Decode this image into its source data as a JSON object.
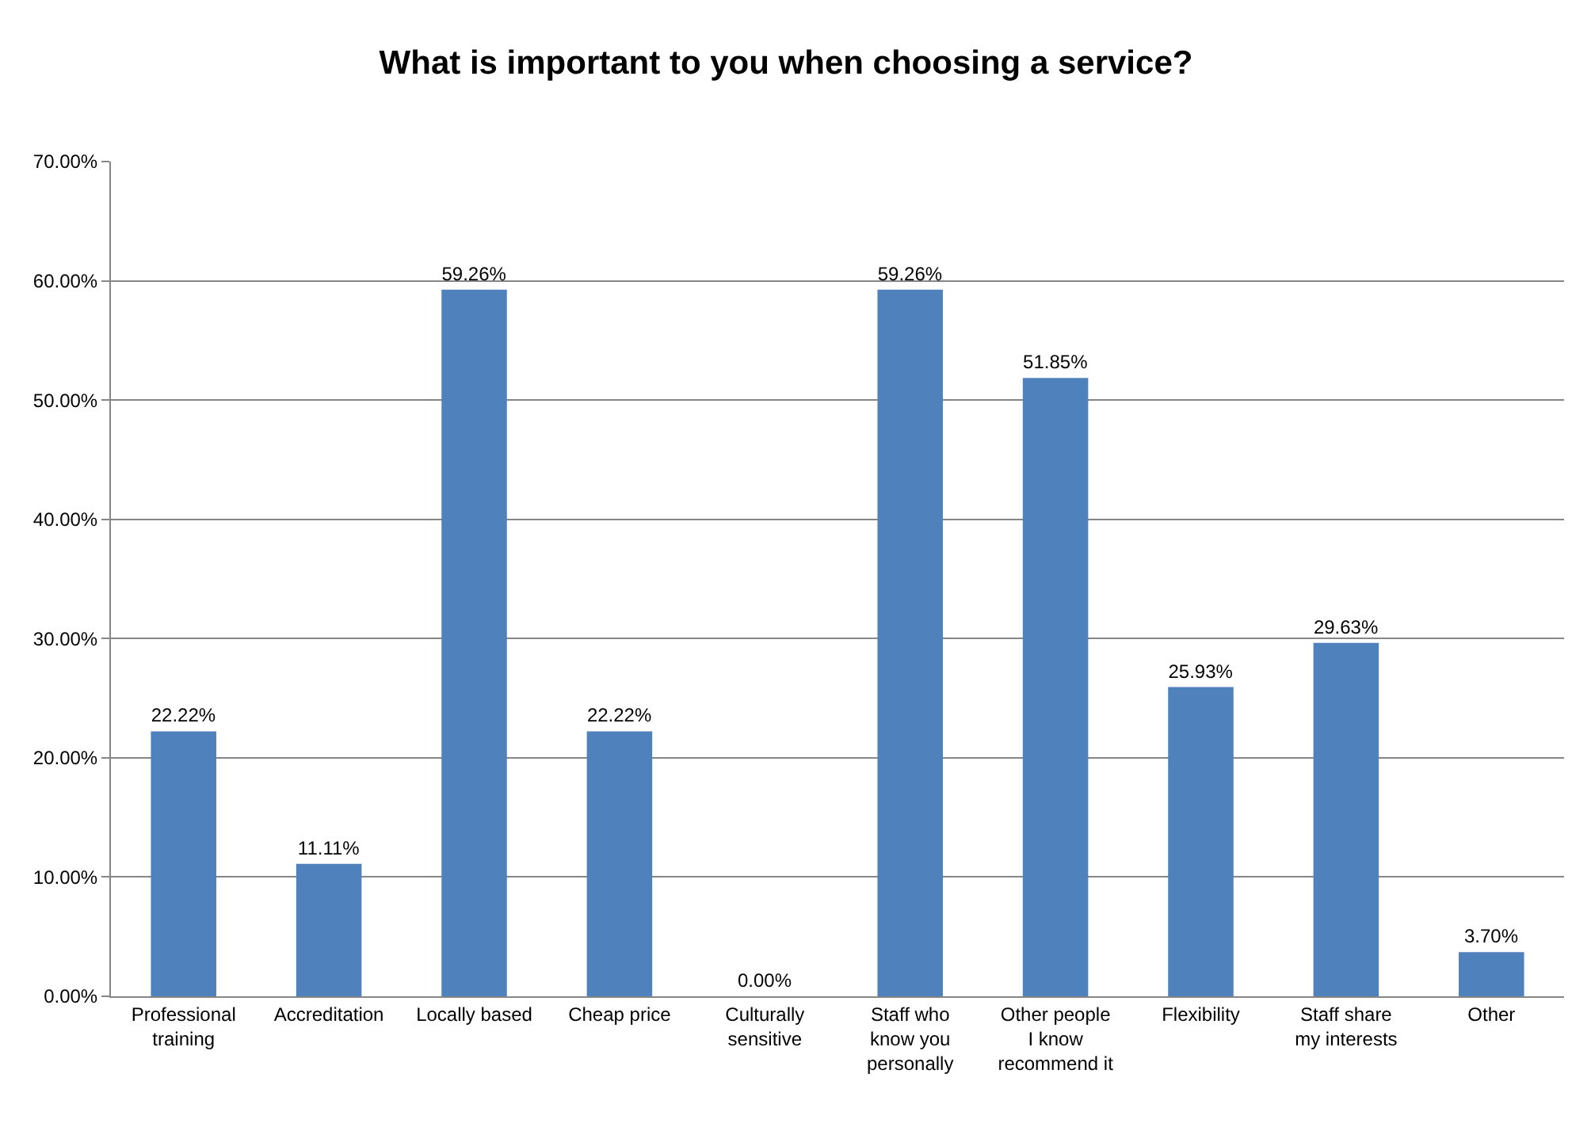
{
  "chart_data": {
    "type": "bar",
    "title": "What is important to you when choosing a service?",
    "categories": [
      "Professional training",
      "Accreditation",
      "Locally based",
      "Cheap price",
      "Culturally sensitive",
      "Staff who know you personally",
      "Other people I know recommend it",
      "Flexibility",
      "Staff share my interests",
      "Other"
    ],
    "values": [
      22.22,
      11.11,
      59.26,
      22.22,
      0.0,
      59.26,
      51.85,
      25.93,
      29.63,
      3.7
    ],
    "value_labels": [
      "22.22%",
      "11.11%",
      "59.26%",
      "22.22%",
      "0.00%",
      "59.26%",
      "51.85%",
      "25.93%",
      "29.63%",
      "3.70%"
    ],
    "color": "#4f81bd",
    "ylim": [
      0,
      70
    ],
    "yticks": [
      {
        "value": 0,
        "label": "0.00%"
      },
      {
        "value": 10,
        "label": "10.00%"
      },
      {
        "value": 20,
        "label": "20.00%"
      },
      {
        "value": 30,
        "label": "30.00%"
      },
      {
        "value": 40,
        "label": "40.00%"
      },
      {
        "value": 50,
        "label": "50.00%"
      },
      {
        "value": 60,
        "label": "60.00%"
      },
      {
        "value": 70,
        "label": "70.00%"
      }
    ],
    "grid": "y"
  }
}
